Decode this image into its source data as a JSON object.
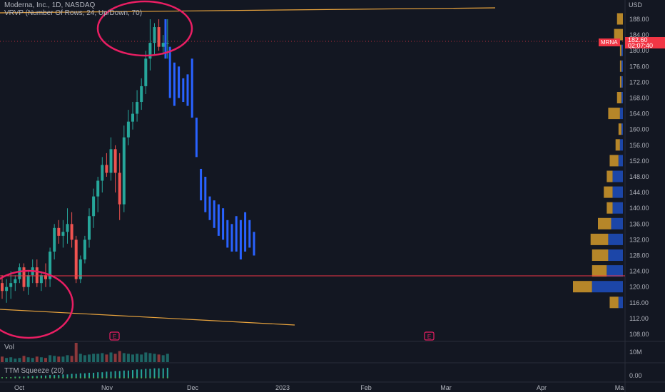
{
  "header": {
    "title": "Moderna, Inc., 1D, NASDAQ",
    "indicator": "VRVP (Number Of Rows, 24, Up/Down, 70)"
  },
  "price_axis": {
    "currency": "USD",
    "ticks": [
      "188.00",
      "184.00",
      "180.00",
      "176.00",
      "172.00",
      "168.00",
      "164.00",
      "160.00",
      "156.00",
      "152.00",
      "148.00",
      "144.00",
      "140.00",
      "136.00",
      "132.00",
      "128.00",
      "124.00",
      "120.00",
      "116.00",
      "112.00",
      "108.00"
    ]
  },
  "last_price": {
    "symbol": "MRNA",
    "price": "182.60",
    "countdown": "02:07:40"
  },
  "volume_pane": {
    "label": "Vol",
    "axis_label": "10M"
  },
  "squeeze_pane": {
    "label": "TTM Squeeze (20)",
    "axis_label": "0.00"
  },
  "time_axis": {
    "labels": [
      "Oct",
      "Nov",
      "Dec",
      "2023",
      "Feb",
      "Mar",
      "Apr",
      "Ma"
    ]
  },
  "earnings_markers": [
    "E",
    "E"
  ],
  "colors": {
    "background": "#131722",
    "up": "#26a69a",
    "down": "#ef5350",
    "projection": "#2962ff",
    "trendline": "#e8a33d",
    "horizontal_line": "#f23645",
    "circle": "#e91e63",
    "vp_up": "#1e4fc0",
    "vp_down": "#d49a2a"
  },
  "chart_data": {
    "type": "candlestick",
    "ylim": [
      106,
      190
    ],
    "ohlc": [
      [
        121,
        123,
        117,
        119
      ],
      [
        119,
        122,
        116,
        120
      ],
      [
        120,
        124,
        117,
        121
      ],
      [
        121,
        123,
        119,
        122
      ],
      [
        122,
        126,
        121,
        125
      ],
      [
        125,
        126,
        119,
        120
      ],
      [
        120,
        124,
        118,
        123
      ],
      [
        123,
        127,
        121,
        125
      ],
      [
        125,
        127,
        120,
        121
      ],
      [
        121,
        124,
        119,
        123
      ],
      [
        123,
        126,
        120,
        122
      ],
      [
        122,
        130,
        120,
        129
      ],
      [
        129,
        136,
        127,
        135
      ],
      [
        135,
        137,
        131,
        133
      ],
      [
        133,
        137,
        130,
        134
      ],
      [
        134,
        140,
        131,
        136
      ],
      [
        136,
        139,
        130,
        132
      ],
      [
        132,
        133,
        121,
        122
      ],
      [
        122,
        128,
        121,
        127
      ],
      [
        127,
        133,
        126,
        132
      ],
      [
        132,
        140,
        130,
        138
      ],
      [
        138,
        145,
        135,
        143
      ],
      [
        143,
        148,
        139,
        147
      ],
      [
        147,
        153,
        144,
        151
      ],
      [
        151,
        154,
        148,
        149
      ],
      [
        149,
        158,
        147,
        155
      ],
      [
        155,
        156,
        144,
        149
      ],
      [
        149,
        154,
        137,
        141
      ],
      [
        141,
        161,
        139,
        158
      ],
      [
        158,
        165,
        156,
        162
      ],
      [
        162,
        167,
        160,
        164
      ],
      [
        164,
        170,
        162,
        167
      ],
      [
        167,
        173,
        165,
        171
      ],
      [
        171,
        180,
        169,
        178
      ],
      [
        178,
        188,
        175,
        182
      ],
      [
        182,
        187,
        179,
        186
      ],
      [
        186,
        188,
        180,
        181
      ],
      [
        181,
        184,
        179,
        182
      ],
      [
        182,
        188,
        178,
        182
      ]
    ],
    "projection_bars": [
      [
        188,
        178
      ],
      [
        181,
        168
      ],
      [
        177,
        166
      ],
      [
        176,
        168
      ],
      [
        173,
        167
      ],
      [
        174,
        166
      ],
      [
        178,
        163
      ],
      [
        163,
        153
      ],
      [
        150,
        142
      ],
      [
        148,
        139
      ],
      [
        143,
        137
      ],
      [
        142,
        135
      ],
      [
        141,
        133
      ],
      [
        140,
        132
      ],
      [
        137,
        130
      ],
      [
        136,
        129
      ],
      [
        138,
        129
      ],
      [
        137,
        127
      ],
      [
        139,
        129
      ],
      [
        137,
        130
      ],
      [
        134,
        128
      ]
    ],
    "volume": [
      8,
      6,
      7,
      5,
      6,
      9,
      7,
      6,
      8,
      7,
      6,
      10,
      9,
      8,
      8,
      10,
      9,
      28,
      12,
      10,
      11,
      12,
      12,
      13,
      11,
      14,
      12,
      16,
      13,
      12,
      11,
      12,
      11,
      14,
      13,
      12,
      11,
      10,
      12
    ],
    "squeeze": [
      1,
      1,
      1,
      2,
      2,
      2,
      3,
      3,
      3,
      4,
      4,
      5,
      5,
      5,
      6,
      6,
      7,
      7,
      8,
      8,
      9,
      9,
      10,
      10,
      11,
      11,
      12,
      12,
      13,
      13,
      14,
      15,
      15,
      16,
      16,
      17,
      17,
      17,
      18
    ],
    "volume_profile": [
      {
        "price": 188,
        "up": 0,
        "down": 4
      },
      {
        "price": 184,
        "up": 0,
        "down": 6
      },
      {
        "price": 180,
        "up": 1,
        "down": 1
      },
      {
        "price": 176,
        "up": 1,
        "down": 1
      },
      {
        "price": 172,
        "up": 1,
        "down": 1
      },
      {
        "price": 168,
        "up": 1,
        "down": 3
      },
      {
        "price": 164,
        "up": 2,
        "down": 8
      },
      {
        "price": 160,
        "up": 1,
        "down": 2
      },
      {
        "price": 156,
        "up": 2,
        "down": 3
      },
      {
        "price": 152,
        "up": 3,
        "down": 6
      },
      {
        "price": 148,
        "up": 7,
        "down": 4
      },
      {
        "price": 144,
        "up": 7,
        "down": 6
      },
      {
        "price": 140,
        "up": 7,
        "down": 4
      },
      {
        "price": 136,
        "up": 8,
        "down": 9
      },
      {
        "price": 132,
        "up": 10,
        "down": 12
      },
      {
        "price": 128,
        "up": 10,
        "down": 11
      },
      {
        "price": 124,
        "up": 11,
        "down": 10
      },
      {
        "price": 120,
        "up": 21,
        "down": 13
      },
      {
        "price": 116,
        "up": 3,
        "down": 6
      }
    ]
  }
}
